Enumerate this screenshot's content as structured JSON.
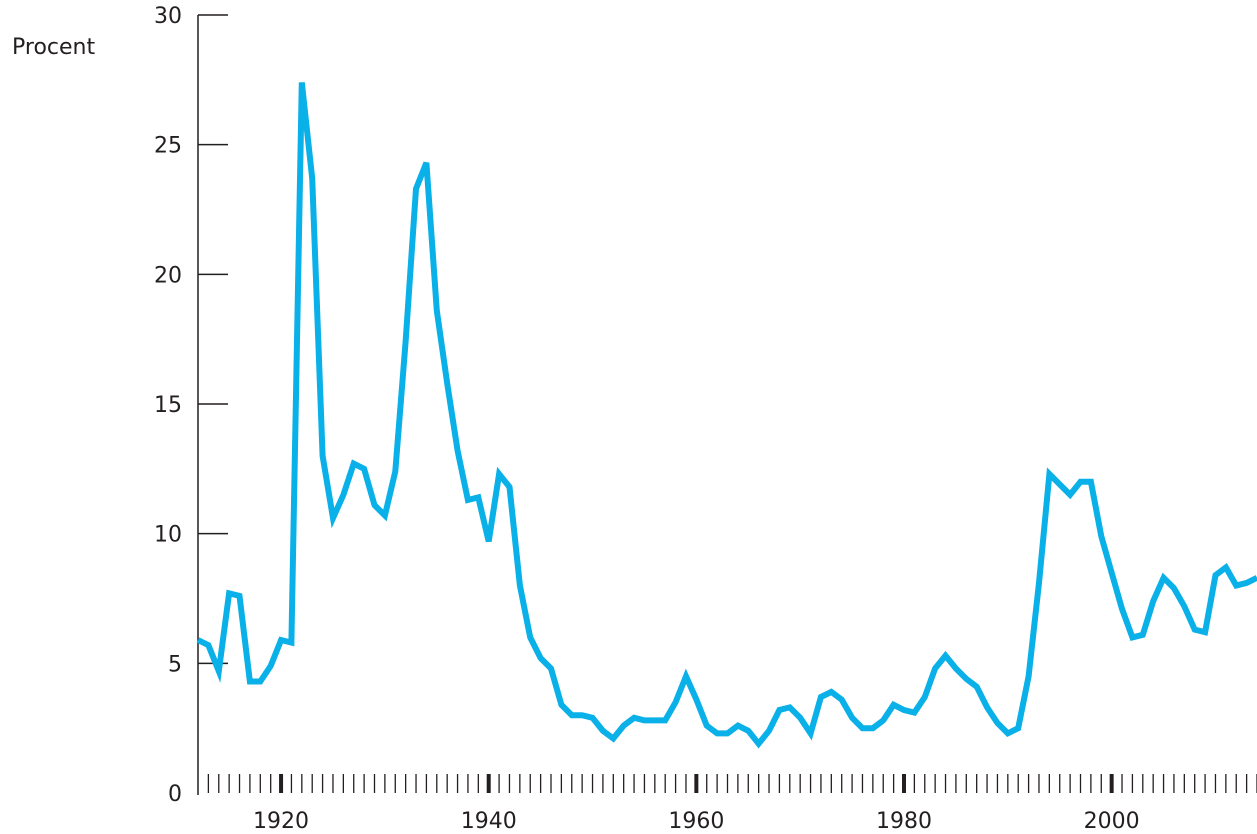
{
  "chart_data": {
    "type": "line",
    "ylabel": "Procent",
    "xlabel": "",
    "title": "",
    "xlim": [
      1912,
      2014
    ],
    "ylim": [
      0,
      30
    ],
    "y_ticks": [
      0,
      5,
      10,
      15,
      20,
      25,
      30
    ],
    "y_tick_labels": [
      "0",
      "5",
      "10",
      "15",
      "20",
      "25",
      "30"
    ],
    "x_major_ticks": [
      1920,
      1940,
      1960,
      1980,
      2000
    ],
    "x_tick_labels": [
      "1920",
      "1940",
      "1960",
      "1980",
      "2000"
    ],
    "grid": false,
    "series": [
      {
        "color": "#0ab0e8",
        "x": [
          1912,
          1913,
          1914,
          1915,
          1916,
          1917,
          1918,
          1919,
          1920,
          1921,
          1922,
          1923,
          1924,
          1925,
          1926,
          1927,
          1928,
          1929,
          1930,
          1931,
          1932,
          1933,
          1934,
          1935,
          1936,
          1937,
          1938,
          1939,
          1940,
          1941,
          1942,
          1943,
          1944,
          1945,
          1946,
          1947,
          1948,
          1949,
          1950,
          1951,
          1952,
          1953,
          1954,
          1955,
          1956,
          1957,
          1958,
          1959,
          1960,
          1961,
          1962,
          1963,
          1964,
          1965,
          1966,
          1967,
          1968,
          1969,
          1970,
          1971,
          1972,
          1973,
          1974,
          1975,
          1976,
          1977,
          1978,
          1979,
          1980,
          1981,
          1982,
          1983,
          1984,
          1985,
          1986,
          1987,
          1988,
          1989,
          1990,
          1991,
          1992,
          1993,
          1994,
          1995,
          1996,
          1997,
          1998,
          1999,
          2000,
          2001,
          2002,
          2003,
          2004,
          2005,
          2006,
          2007,
          2008,
          2009,
          2010,
          2011,
          2012,
          2013,
          2014
        ],
        "y": [
          5.9,
          5.7,
          4.7,
          7.7,
          7.6,
          4.3,
          4.3,
          4.9,
          5.9,
          5.8,
          27.4,
          23.7,
          13.0,
          10.6,
          11.5,
          12.7,
          12.5,
          11.1,
          10.7,
          12.4,
          17.4,
          23.3,
          24.3,
          18.6,
          15.8,
          13.2,
          11.3,
          11.4,
          9.7,
          12.3,
          11.8,
          8.0,
          6.0,
          5.2,
          4.8,
          3.4,
          3.0,
          3.0,
          2.9,
          2.4,
          2.1,
          2.6,
          2.9,
          2.8,
          2.8,
          2.8,
          3.5,
          4.5,
          3.6,
          2.6,
          2.3,
          2.3,
          2.6,
          2.4,
          1.9,
          2.4,
          3.2,
          3.3,
          2.9,
          2.3,
          3.7,
          3.9,
          3.6,
          2.9,
          2.5,
          2.5,
          2.8,
          3.4,
          3.2,
          3.1,
          3.7,
          4.8,
          5.3,
          4.8,
          4.4,
          4.1,
          3.3,
          2.7,
          2.3,
          2.5,
          4.5,
          8.1,
          12.3,
          11.9,
          11.5,
          12.0,
          12.0,
          9.9,
          8.5,
          7.1,
          6.0,
          6.1,
          7.4,
          8.3,
          7.9,
          7.2,
          6.3,
          6.2,
          8.4,
          8.7,
          8.0,
          8.1,
          8.3
        ]
      }
    ]
  }
}
